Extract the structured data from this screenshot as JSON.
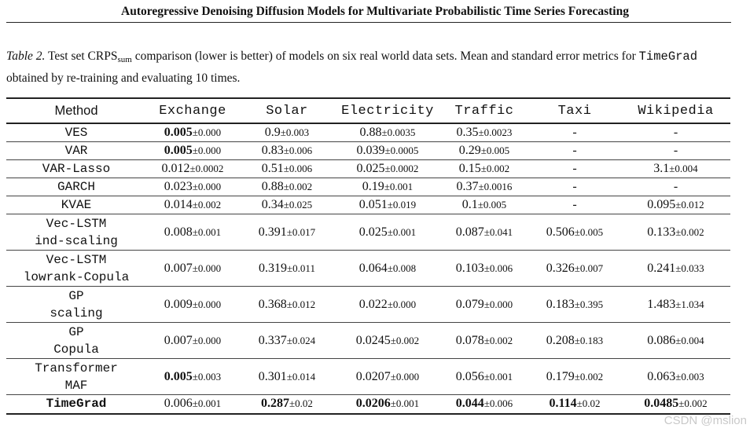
{
  "header": {
    "title": "Autoregressive Denoising Diffusion Models for Multivariate Probabilistic Time Series Forecasting"
  },
  "caption": {
    "label": "Table 2.",
    "part1": " Test set CRPS",
    "sub": "sum",
    "part2": " comparison (lower is better) of models on six real world data sets.  Mean and standard error metrics for ",
    "model": "TimeGrad",
    "part3": " obtained by re-training and evaluating 10 times."
  },
  "table": {
    "columns": [
      "Method",
      "Exchange",
      "Solar",
      "Electricity",
      "Traffic",
      "Taxi",
      "Wikipedia"
    ],
    "rows": [
      {
        "method": [
          "VES"
        ],
        "cells": [
          {
            "m": "0.005",
            "s": "±0.000",
            "bold": true
          },
          {
            "m": "0.9",
            "s": "±0.003"
          },
          {
            "m": "0.88",
            "s": "±0.0035"
          },
          {
            "m": "0.35",
            "s": "±0.0023"
          },
          {
            "m": "-",
            "s": ""
          },
          {
            "m": "-",
            "s": ""
          }
        ]
      },
      {
        "method": [
          "VAR"
        ],
        "cells": [
          {
            "m": "0.005",
            "s": "±0.000",
            "bold": true
          },
          {
            "m": "0.83",
            "s": "±0.006"
          },
          {
            "m": "0.039",
            "s": "±0.0005"
          },
          {
            "m": "0.29",
            "s": "±0.005"
          },
          {
            "m": "-",
            "s": ""
          },
          {
            "m": "-",
            "s": ""
          }
        ]
      },
      {
        "method": [
          "VAR-Lasso"
        ],
        "cells": [
          {
            "m": "0.012",
            "s": "±0.0002"
          },
          {
            "m": "0.51",
            "s": "±0.006"
          },
          {
            "m": "0.025",
            "s": "±0.0002"
          },
          {
            "m": "0.15",
            "s": "±0.002"
          },
          {
            "m": "-",
            "s": ""
          },
          {
            "m": "3.1",
            "s": "±0.004"
          }
        ]
      },
      {
        "method": [
          "GARCH"
        ],
        "cells": [
          {
            "m": "0.023",
            "s": "±0.000"
          },
          {
            "m": "0.88",
            "s": "±0.002"
          },
          {
            "m": "0.19",
            "s": "±0.001"
          },
          {
            "m": "0.37",
            "s": "±0.0016"
          },
          {
            "m": "-",
            "s": ""
          },
          {
            "m": "-",
            "s": ""
          }
        ]
      },
      {
        "method": [
          "KVAE"
        ],
        "cells": [
          {
            "m": "0.014",
            "s": "±0.002"
          },
          {
            "m": "0.34",
            "s": "±0.025"
          },
          {
            "m": "0.051",
            "s": "±0.019"
          },
          {
            "m": "0.1",
            "s": "±0.005"
          },
          {
            "m": "-",
            "s": ""
          },
          {
            "m": "0.095",
            "s": "±0.012"
          }
        ]
      },
      {
        "method": [
          "Vec-LSTM",
          "ind-scaling"
        ],
        "cells": [
          {
            "m": "0.008",
            "s": "±0.001"
          },
          {
            "m": "0.391",
            "s": "±0.017"
          },
          {
            "m": "0.025",
            "s": "±0.001"
          },
          {
            "m": "0.087",
            "s": "±0.041"
          },
          {
            "m": "0.506",
            "s": "±0.005"
          },
          {
            "m": "0.133",
            "s": "±0.002"
          }
        ]
      },
      {
        "method": [
          "Vec-LSTM",
          "lowrank-Copula"
        ],
        "cells": [
          {
            "m": "0.007",
            "s": "±0.000"
          },
          {
            "m": "0.319",
            "s": "±0.011"
          },
          {
            "m": "0.064",
            "s": "±0.008"
          },
          {
            "m": "0.103",
            "s": "±0.006"
          },
          {
            "m": "0.326",
            "s": "±0.007"
          },
          {
            "m": "0.241",
            "s": "±0.033"
          }
        ]
      },
      {
        "method": [
          "GP",
          "scaling"
        ],
        "cells": [
          {
            "m": "0.009",
            "s": "±0.000"
          },
          {
            "m": "0.368",
            "s": "±0.012"
          },
          {
            "m": "0.022",
            "s": "±0.000"
          },
          {
            "m": "0.079",
            "s": "±0.000"
          },
          {
            "m": "0.183",
            "s": "±0.395"
          },
          {
            "m": "1.483",
            "s": "±1.034"
          }
        ]
      },
      {
        "method": [
          "GP",
          "Copula"
        ],
        "cells": [
          {
            "m": "0.007",
            "s": "±0.000"
          },
          {
            "m": "0.337",
            "s": "±0.024"
          },
          {
            "m": "0.0245",
            "s": "±0.002"
          },
          {
            "m": "0.078",
            "s": "±0.002"
          },
          {
            "m": "0.208",
            "s": "±0.183"
          },
          {
            "m": "0.086",
            "s": "±0.004"
          }
        ]
      },
      {
        "method": [
          "Transformer",
          "MAF"
        ],
        "cells": [
          {
            "m": "0.005",
            "s": "±0.003",
            "bold": true
          },
          {
            "m": "0.301",
            "s": "±0.014"
          },
          {
            "m": "0.0207",
            "s": "±0.000"
          },
          {
            "m": "0.056",
            "s": "±0.001"
          },
          {
            "m": "0.179",
            "s": "±0.002"
          },
          {
            "m": "0.063",
            "s": "±0.003"
          }
        ]
      },
      {
        "method": [
          "TimeGrad"
        ],
        "bold": true,
        "cells": [
          {
            "m": "0.006",
            "s": "±0.001"
          },
          {
            "m": "0.287",
            "s": "±0.02",
            "bold": true
          },
          {
            "m": "0.0206",
            "s": "±0.001",
            "bold": true
          },
          {
            "m": "0.044",
            "s": "±0.006",
            "bold": true
          },
          {
            "m": "0.114",
            "s": "±0.02",
            "bold": true
          },
          {
            "m": "0.0485",
            "s": "±0.002",
            "bold": true
          }
        ]
      }
    ]
  },
  "watermark": "CSDN @mslion"
}
